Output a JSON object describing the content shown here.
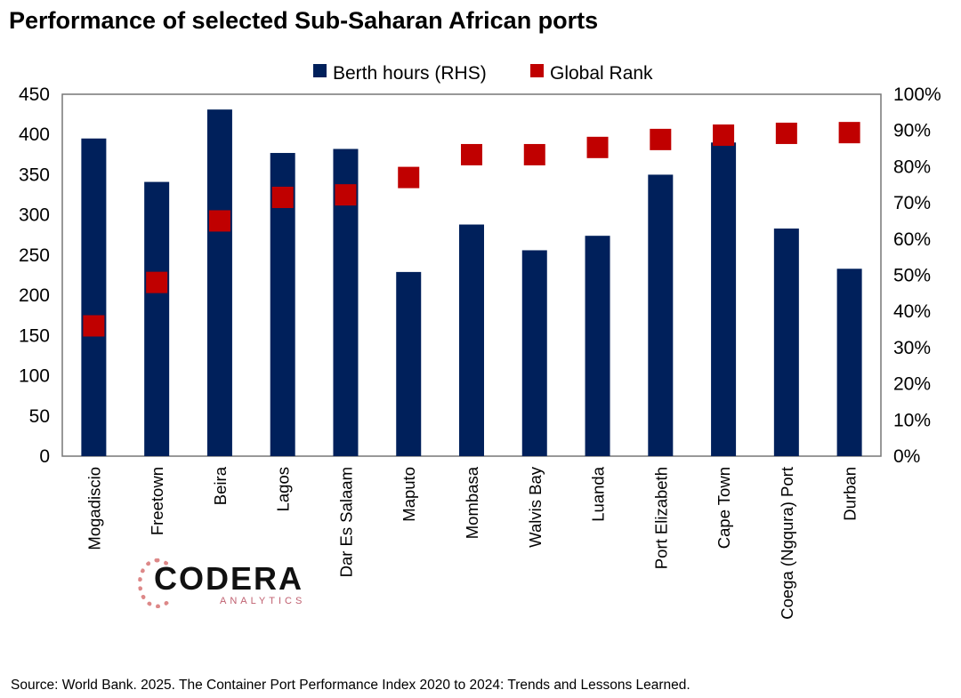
{
  "title": "Performance of selected Sub-Saharan African ports",
  "source": "Source: World Bank. 2025. The Container Port Performance Index 2020 to 2024: Trends and Lessons Learned.",
  "logo": {
    "name": "CODERA",
    "sub": "ANALYTICS"
  },
  "colors": {
    "bar": "#00205b",
    "marker": "#c00000"
  },
  "chart_data": {
    "type": "bar",
    "title": "Performance of selected Sub-Saharan African ports",
    "legend": [
      "Berth hours (RHS)",
      "Global Rank"
    ],
    "legend_placement": "top-center",
    "categories": [
      "Mogadiscio",
      "Freetown",
      "Beira",
      "Lagos",
      "Dar Es Salaam",
      "Maputo",
      "Mombasa",
      "Walvis Bay",
      "Luanda",
      "Port Elizabeth",
      "Cape Town",
      "Coega (Ngqura) Port",
      "Durban"
    ],
    "series": [
      {
        "name": "Berth hours (RHS)",
        "type": "bar",
        "axis": "left",
        "values": [
          395,
          341,
          431,
          377,
          382,
          229,
          288,
          256,
          274,
          350,
          390,
          283,
          233
        ]
      },
      {
        "name": "Global Rank",
        "type": "marker",
        "axis": "right",
        "values": [
          36,
          48,
          65,
          71.5,
          72.2,
          77,
          83.3,
          83.3,
          85.3,
          87.5,
          88.7,
          89.2,
          89.4
        ]
      }
    ],
    "left_axis": {
      "ylim": [
        0,
        450
      ],
      "ticks": [
        "0",
        "50",
        "100",
        "150",
        "200",
        "250",
        "300",
        "350",
        "400",
        "450"
      ]
    },
    "right_axis": {
      "ylim": [
        0,
        100
      ],
      "ticks": [
        "0%",
        "10%",
        "20%",
        "30%",
        "40%",
        "50%",
        "60%",
        "70%",
        "80%",
        "90%",
        "100%"
      ]
    },
    "grid": false
  }
}
